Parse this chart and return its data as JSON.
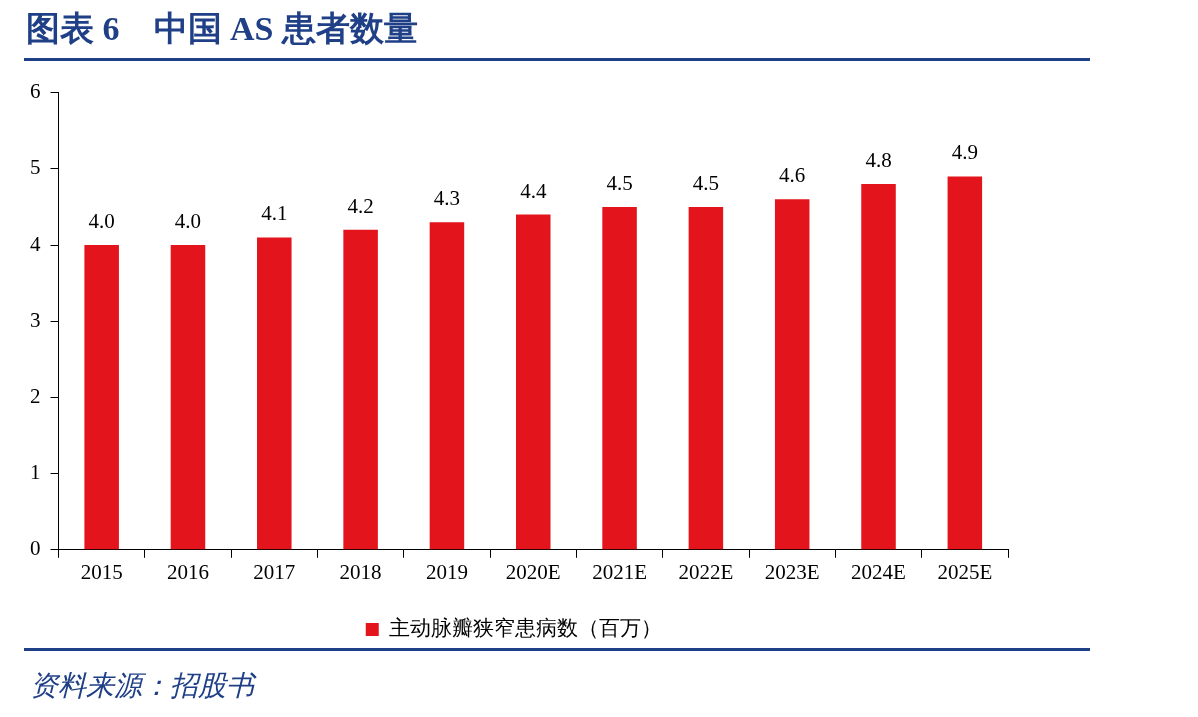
{
  "chart_data": {
    "type": "bar",
    "title": "图表 6　中国 AS 患者数量",
    "categories": [
      "2015",
      "2016",
      "2017",
      "2018",
      "2019",
      "2020E",
      "2021E",
      "2022E",
      "2023E",
      "2024E",
      "2025E"
    ],
    "series": [
      {
        "name": "主动脉瓣狭窄患病数（百万）",
        "color": "#e3141b",
        "values": [
          4.0,
          4.0,
          4.1,
          4.2,
          4.3,
          4.4,
          4.5,
          4.5,
          4.6,
          4.8,
          4.9
        ],
        "value_labels": [
          "4.0",
          "4.0",
          "4.1",
          "4.2",
          "4.3",
          "4.4",
          "4.5",
          "4.5",
          "4.6",
          "4.8",
          "4.9"
        ]
      }
    ],
    "ylim": [
      0,
      6
    ],
    "yticks": [
      0,
      1,
      2,
      3,
      4,
      5,
      6
    ],
    "grid": false,
    "legend": "bottom",
    "annotations": [
      "资料来源：招股书"
    ]
  }
}
